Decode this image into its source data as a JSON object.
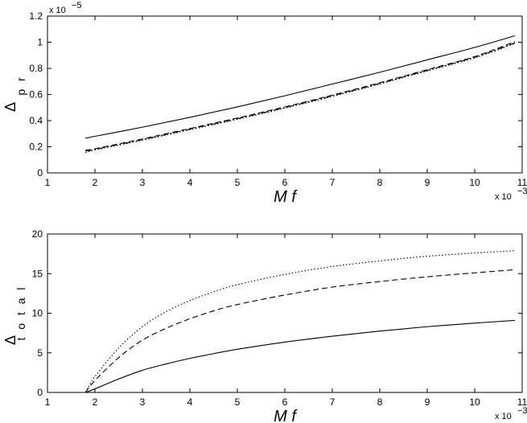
{
  "chart_data": [
    {
      "type": "line",
      "xlabel": "M f",
      "ylabel": "Δ",
      "ylabel_subscript": "p r",
      "x_exponent_label": "x 10",
      "x_exponent_power": "−3",
      "y_exponent_label": "x 10",
      "y_exponent_power": "−5",
      "xlim": [
        1,
        11
      ],
      "ylim": [
        0,
        1.2
      ],
      "xticks": [
        "1",
        "2",
        "3",
        "4",
        "5",
        "6",
        "7",
        "8",
        "9",
        "10",
        "11"
      ],
      "yticks": [
        "0",
        "0.2",
        "0.4",
        "0.6",
        "0.8",
        "1",
        "1.2"
      ],
      "grid": false,
      "x": [
        1.8,
        2,
        3,
        4,
        5,
        6,
        7,
        8,
        9,
        10,
        10.85
      ],
      "series": [
        {
          "style": "solid",
          "values": [
            0.265,
            0.28,
            0.35,
            0.425,
            0.505,
            0.59,
            0.68,
            0.77,
            0.865,
            0.96,
            1.05
          ]
        },
        {
          "style": "dashed",
          "values": [
            0.175,
            0.185,
            0.26,
            0.34,
            0.42,
            0.505,
            0.595,
            0.69,
            0.79,
            0.89,
            1.005
          ]
        },
        {
          "style": "dashdot",
          "values": [
            0.165,
            0.18,
            0.255,
            0.335,
            0.415,
            0.5,
            0.59,
            0.685,
            0.785,
            0.885,
            0.995
          ]
        },
        {
          "style": "dotted",
          "values": [
            0.155,
            0.175,
            0.25,
            0.33,
            0.41,
            0.495,
            0.585,
            0.68,
            0.78,
            0.88,
            0.99
          ]
        }
      ]
    },
    {
      "type": "line",
      "xlabel": "M f",
      "ylabel": "Δ",
      "ylabel_subscript": "t o t a l",
      "x_exponent_label": "x 10",
      "x_exponent_power": "−3",
      "xlim": [
        1,
        11
      ],
      "ylim": [
        0,
        20
      ],
      "xticks": [
        "1",
        "2",
        "3",
        "4",
        "5",
        "6",
        "7",
        "8",
        "9",
        "10",
        "11"
      ],
      "yticks": [
        "0",
        "5",
        "10",
        "15",
        "20"
      ],
      "grid": false,
      "x": [
        1.8,
        2,
        2.5,
        3,
        3.5,
        4,
        4.5,
        5,
        6,
        7,
        8,
        9,
        10,
        10.85
      ],
      "series": [
        {
          "style": "solid",
          "values": [
            0.0,
            0.45,
            1.7,
            2.8,
            3.6,
            4.3,
            4.9,
            5.45,
            6.35,
            7.1,
            7.75,
            8.3,
            8.75,
            9.1
          ]
        },
        {
          "style": "dashed",
          "values": [
            0.0,
            1.5,
            4.4,
            6.6,
            8.1,
            9.3,
            10.3,
            11.1,
            12.3,
            13.3,
            14.0,
            14.6,
            15.1,
            15.5
          ]
        },
        {
          "style": "dotted",
          "values": [
            0.0,
            2.0,
            5.6,
            8.3,
            10.2,
            11.6,
            12.7,
            13.6,
            14.9,
            15.9,
            16.6,
            17.2,
            17.6,
            17.9
          ]
        }
      ]
    }
  ]
}
